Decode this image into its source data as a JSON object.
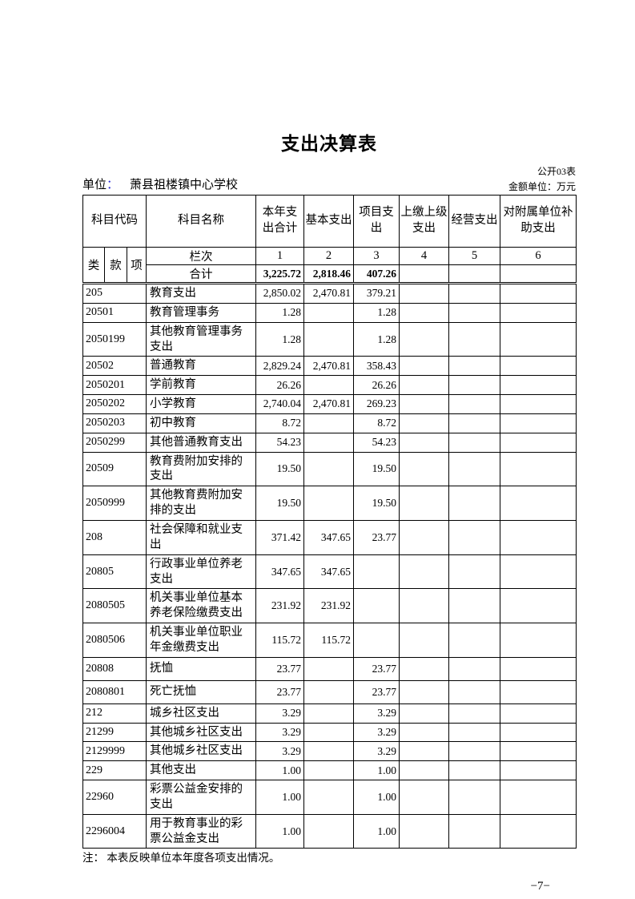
{
  "page": {
    "title": "支出决算表",
    "form_code": "公开03表",
    "unit_label": "单位",
    "unit_colon": "：",
    "unit_name": "萧县祖楼镇中心学校",
    "amount_unit": "金额单位：万元",
    "note": "注： 本表反映单位本年度各项支出情况。",
    "page_number": "−7−"
  },
  "colors": {
    "unit_colon_blue": "#2b2bd5",
    "border": "#000000",
    "background": "#ffffff"
  },
  "table": {
    "header": {
      "code_label": "科目代码",
      "name_label": "科目名称",
      "cols": [
        "本年支出合计",
        "基本支出",
        "项目支出",
        "上缴上级支出",
        "经营支出",
        "对附属单位补助支出"
      ],
      "sub": [
        "类",
        "款",
        "项"
      ],
      "lanci_label": "栏次",
      "lanci_numbers": [
        "1",
        "2",
        "3",
        "4",
        "5",
        "6"
      ]
    },
    "total_row": {
      "label": "合计",
      "values": [
        "3,225.72",
        "2,818.46",
        "407.26",
        "",
        "",
        ""
      ]
    },
    "rows": [
      {
        "code": "205",
        "name": "教育支出",
        "tall": false,
        "values": [
          "2,850.02",
          "2,470.81",
          "379.21",
          "",
          "",
          ""
        ]
      },
      {
        "code": "20501",
        "name": "教育管理事务",
        "tall": false,
        "values": [
          "1.28",
          "",
          "1.28",
          "",
          "",
          ""
        ]
      },
      {
        "code": "2050199",
        "name": "其他教育管理事务支出",
        "tall": false,
        "values": [
          "1.28",
          "",
          "1.28",
          "",
          "",
          ""
        ]
      },
      {
        "code": "20502",
        "name": "普通教育",
        "tall": false,
        "values": [
          "2,829.24",
          "2,470.81",
          "358.43",
          "",
          "",
          ""
        ]
      },
      {
        "code": "2050201",
        "name": "学前教育",
        "tall": false,
        "values": [
          "26.26",
          "",
          "26.26",
          "",
          "",
          ""
        ]
      },
      {
        "code": "2050202",
        "name": "小学教育",
        "tall": false,
        "values": [
          "2,740.04",
          "2,470.81",
          "269.23",
          "",
          "",
          ""
        ]
      },
      {
        "code": "2050203",
        "name": "初中教育",
        "tall": false,
        "values": [
          "8.72",
          "",
          "8.72",
          "",
          "",
          ""
        ]
      },
      {
        "code": "2050299",
        "name": "其他普通教育支出",
        "tall": false,
        "values": [
          "54.23",
          "",
          "54.23",
          "",
          "",
          ""
        ]
      },
      {
        "code": "20509",
        "name": "教育费附加安排的支出",
        "tall": false,
        "values": [
          "19.50",
          "",
          "19.50",
          "",
          "",
          ""
        ]
      },
      {
        "code": "2050999",
        "name": "其他教育费附加安排的支出",
        "tall": false,
        "values": [
          "19.50",
          "",
          "19.50",
          "",
          "",
          ""
        ]
      },
      {
        "code": "208",
        "name": "社会保障和就业支出",
        "tall": false,
        "values": [
          "371.42",
          "347.65",
          "23.77",
          "",
          "",
          ""
        ]
      },
      {
        "code": "20805",
        "name": "行政事业单位养老支出",
        "tall": false,
        "values": [
          "347.65",
          "347.65",
          "",
          "",
          "",
          ""
        ]
      },
      {
        "code": "2080505",
        "name": "机关事业单位基本养老保险缴费支出",
        "tall": false,
        "values": [
          "231.92",
          "231.92",
          "",
          "",
          "",
          ""
        ]
      },
      {
        "code": "2080506",
        "name": "机关事业单位职业年金缴费支出",
        "tall": false,
        "values": [
          "115.72",
          "115.72",
          "",
          "",
          "",
          ""
        ]
      },
      {
        "code": "20808",
        "name": "抚恤",
        "tall": true,
        "values": [
          "23.77",
          "",
          "23.77",
          "",
          "",
          ""
        ]
      },
      {
        "code": "2080801",
        "name": "死亡抚恤",
        "tall": true,
        "values": [
          "23.77",
          "",
          "23.77",
          "",
          "",
          ""
        ]
      },
      {
        "code": "212",
        "name": "城乡社区支出",
        "tall": false,
        "values": [
          "3.29",
          "",
          "3.29",
          "",
          "",
          ""
        ]
      },
      {
        "code": "21299",
        "name": "其他城乡社区支出",
        "tall": false,
        "values": [
          "3.29",
          "",
          "3.29",
          "",
          "",
          ""
        ]
      },
      {
        "code": "2129999",
        "name": "其他城乡社区支出",
        "tall": false,
        "values": [
          "3.29",
          "",
          "3.29",
          "",
          "",
          ""
        ]
      },
      {
        "code": "229",
        "name": "其他支出",
        "tall": false,
        "values": [
          "1.00",
          "",
          "1.00",
          "",
          "",
          ""
        ]
      },
      {
        "code": "22960",
        "name": "彩票公益金安排的支出",
        "tall": false,
        "values": [
          "1.00",
          "",
          "1.00",
          "",
          "",
          ""
        ]
      },
      {
        "code": "2296004",
        "name": "用于教育事业的彩票公益金支出",
        "tall": false,
        "values": [
          "1.00",
          "",
          "1.00",
          "",
          "",
          ""
        ]
      }
    ]
  }
}
